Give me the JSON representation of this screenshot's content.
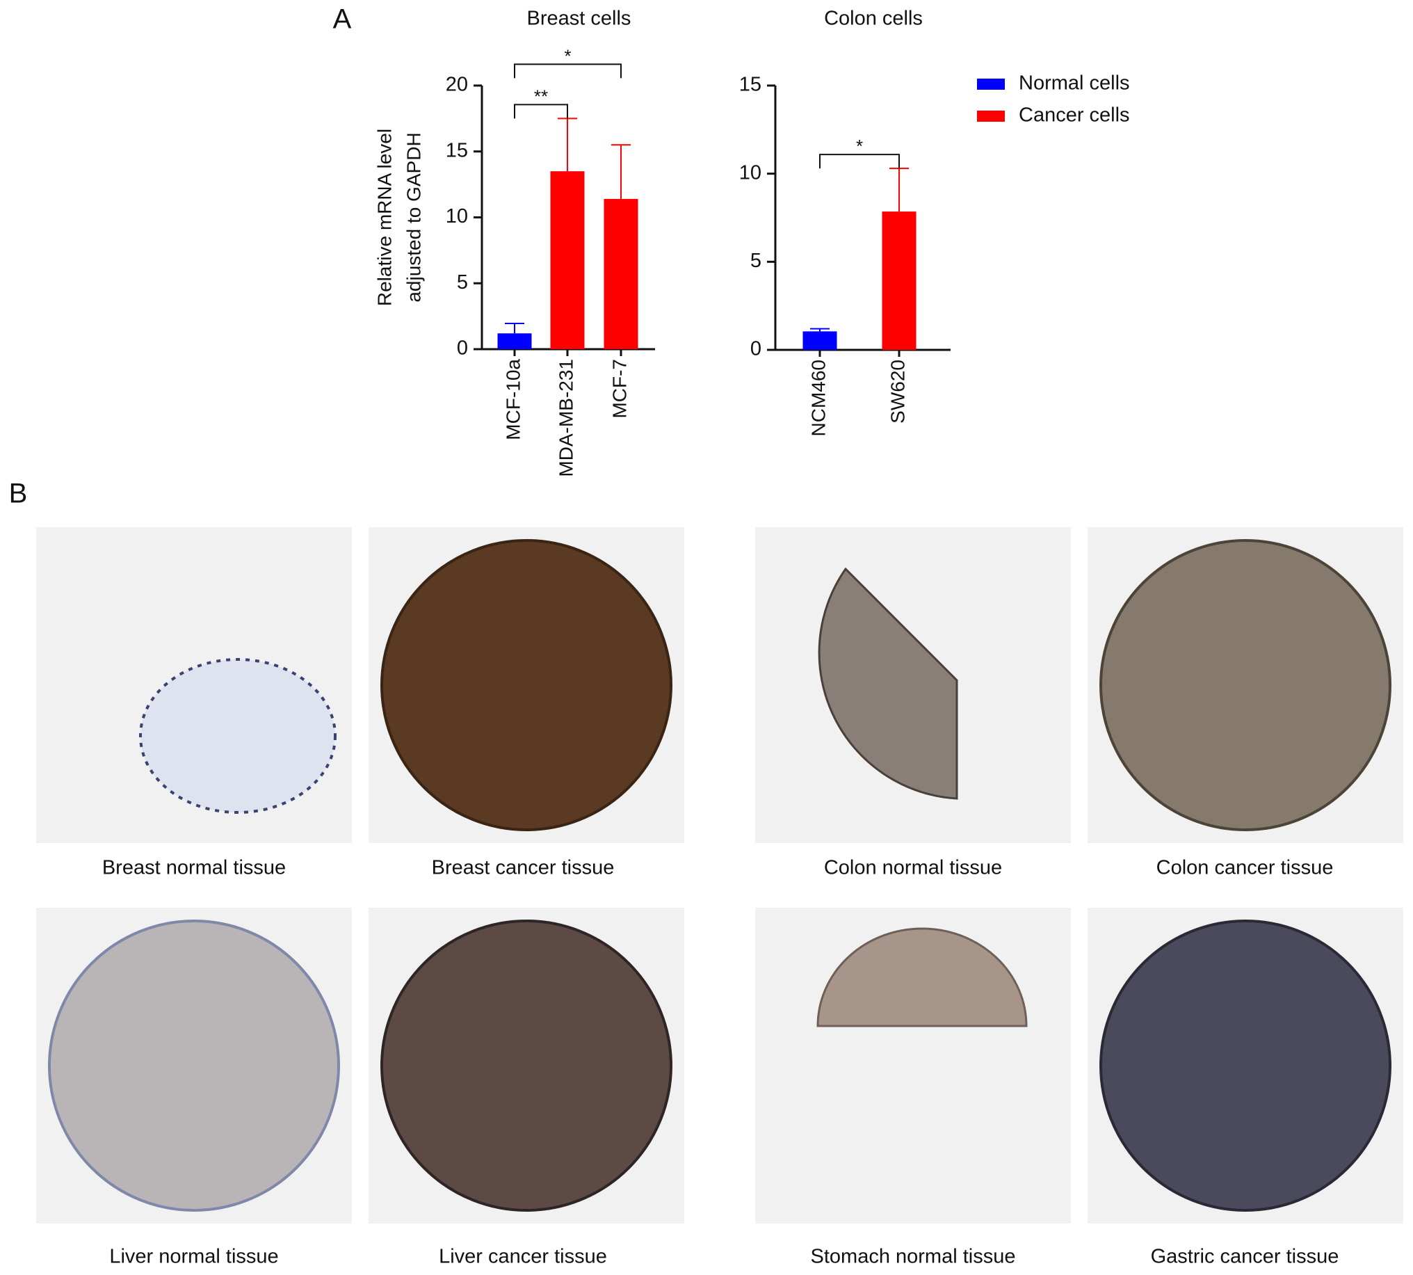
{
  "panel_labels": [
    "A",
    "B"
  ],
  "chart_data": [
    {
      "type": "bar",
      "title": "Breast cells",
      "ylabel": [
        "Relative mRNA level",
        "adjusted to GAPDH"
      ],
      "categories": [
        "MCF-10a",
        "MDA-MB-231",
        "MCF-7"
      ],
      "series": [
        {
          "name": "Normal cells",
          "color": "#0000ff",
          "values": [
            1.2,
            null,
            null
          ],
          "errors": [
            0.75,
            null,
            null
          ]
        },
        {
          "name": "Cancer cells",
          "color": "#ff0000",
          "values": [
            null,
            13.5,
            11.4
          ],
          "errors": [
            null,
            4,
            4.1
          ]
        }
      ],
      "ylim": [
        0,
        20
      ],
      "yticks": [
        0,
        5,
        10,
        15,
        20
      ],
      "annotations": [
        {
          "text": "**",
          "from": 0,
          "to": 1
        },
        {
          "text": "*",
          "from": 0,
          "to": 2
        }
      ]
    },
    {
      "type": "bar",
      "title": "Colon cells",
      "categories": [
        "NCM460",
        "SW620"
      ],
      "series": [
        {
          "color": "#0000ff",
          "values": [
            1.05,
            null
          ],
          "errors": [
            0.15,
            null
          ]
        },
        {
          "color": "#ff0000",
          "values": [
            null,
            7.85
          ],
          "errors": [
            null,
            2.45
          ]
        }
      ],
      "ylim": [
        0,
        15
      ],
      "yticks": [
        0,
        5,
        10,
        15
      ],
      "annotations": [
        {
          "text": "*",
          "from": 0,
          "to": 1
        }
      ]
    }
  ],
  "panel_b": {
    "captions": [
      "Breast normal tissue",
      "Breast cancer tissue",
      "Colon normal tissue",
      "Colon cancer tissue",
      "Liver normal tissue",
      "Liver cancer tissue",
      "Stomach normal tissue",
      "Gastric cancer tissue"
    ]
  }
}
